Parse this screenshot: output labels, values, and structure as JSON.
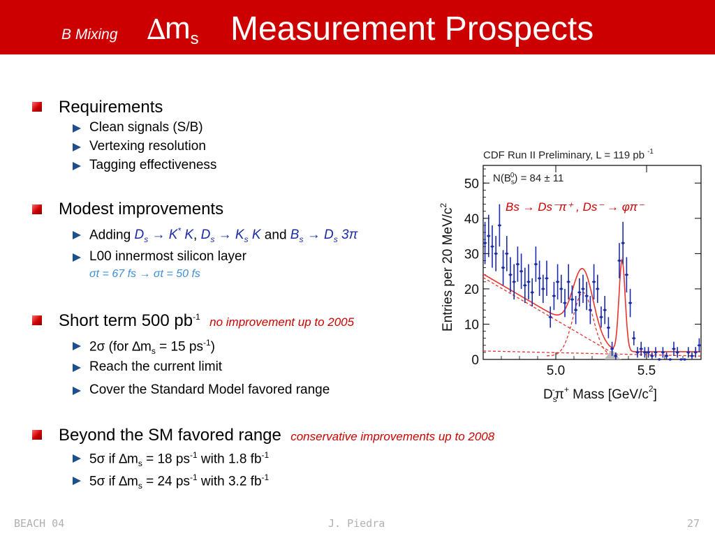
{
  "title": {
    "prefix": "B Mixing",
    "delta": "∆",
    "m": "m",
    "sub": "s",
    "main": "Measurement Prospects"
  },
  "requirements": {
    "heading": "Requirements",
    "items": [
      "Clean signals (S/B)",
      "Vertexing resolution",
      "Tagging effectiveness"
    ]
  },
  "modest": {
    "heading": "Modest improvements",
    "adding": {
      "pre": "Adding ",
      "ds1": "D",
      "s1": "s",
      "arrow1": " → K",
      "star": "*",
      "k1": " K",
      "sep": ",  ",
      "ds2": "D",
      "s2": "s",
      "arrow2": " → K",
      "s3": "s",
      "k2": " K",
      "and": " and ",
      "bs": "B",
      "s4": "s",
      "arrow3": " → D",
      "s5": "s",
      "tail": " 3π"
    },
    "l00": "L00 innermost silicon layer",
    "sigma": "σt = 67 fs → σt = 50 fs"
  },
  "shortterm": {
    "heading": "Short term 500 pb",
    "heading_sup": "-1",
    "note": "no improvement up to 2005",
    "items": [
      {
        "a": "2σ (for ∆m",
        "b": "s",
        "c": " = 15 ps",
        "d": "-1",
        "e": ")"
      },
      {
        "a": "Reach the current limit"
      },
      {
        "a": "Cover the Standard Model favored range"
      }
    ]
  },
  "beyond": {
    "heading": "Beyond the SM favored range",
    "note": "conservative improvements up to 2008",
    "items": [
      {
        "a": "5σ if ∆m",
        "b": "s",
        "c": " = 18 ps",
        "d": "-1",
        "e": " with 1.8 fb",
        "f": "-1"
      },
      {
        "a": "5σ if ∆m",
        "b": "s",
        "c": " = 24 ps",
        "d": "-1",
        "e": " with 3.2 fb",
        "f": "-1"
      }
    ]
  },
  "footer": {
    "left": "BEACH 04",
    "center": "J. Piedra",
    "right": "27"
  },
  "colors": {
    "accent": "#cc0000",
    "bullet": "#1f4e8c",
    "data": "#1a2aa8",
    "fit": "#e8322c"
  },
  "chart_data": {
    "type": "scatter",
    "title": "CDF Run II Preliminary, L = 119 pb",
    "title_sup": "-1",
    "legend_text": "N(B",
    "legend_sub": "s",
    "legend_sup": "0",
    "legend_rest": ") = 84 ± 11",
    "decay_label": "Bs → Ds⁻π⁺ ,  Ds⁻ → φπ⁻",
    "xlabel_pre": "D",
    "xlabel_sub": "s",
    "xlabel_sup": "-",
    "xlabel_post": "π",
    "xlabel_sup2": "+",
    "xlabel_rest": " Mass [GeV/c",
    "xlabel_sup3": "2",
    "xlabel_end": "]",
    "ylabel": "Entries per 20 MeV/c",
    "ylabel_sup": "2",
    "xlim": [
      4.6,
      5.8
    ],
    "ylim": [
      0,
      55
    ],
    "xticks": [
      5.0,
      5.5
    ],
    "yticks": [
      0,
      10,
      20,
      30,
      40,
      50
    ],
    "series": [
      {
        "x": [
          4.61,
          4.63,
          4.65,
          4.67,
          4.69,
          4.71,
          4.73,
          4.75,
          4.77,
          4.79,
          4.81,
          4.83,
          4.85,
          4.87,
          4.89,
          4.91,
          4.93,
          4.95,
          4.97,
          4.99,
          5.01,
          5.03,
          5.05,
          5.07,
          5.09,
          5.11,
          5.13,
          5.15,
          5.17,
          5.19,
          5.21,
          5.23,
          5.25,
          5.27,
          5.29,
          5.31,
          5.33,
          5.35,
          5.37,
          5.39,
          5.41,
          5.43,
          5.45,
          5.47,
          5.49,
          5.51,
          5.53,
          5.55,
          5.57,
          5.59,
          5.61,
          5.63,
          5.65,
          5.67,
          5.69,
          5.71,
          5.73,
          5.75,
          5.77,
          5.79
        ],
        "y": [
          33,
          35,
          32,
          30,
          38,
          26,
          30,
          24,
          22,
          27,
          25,
          21,
          22,
          19,
          27,
          23,
          20,
          23,
          12,
          18,
          22,
          20,
          16,
          22,
          17,
          14,
          19,
          20,
          18,
          14,
          22,
          20,
          12,
          14,
          9,
          3,
          1,
          28,
          33,
          24,
          16,
          6,
          2,
          3,
          2,
          2,
          1,
          2,
          0,
          2,
          1,
          0,
          3,
          2,
          0,
          0,
          2,
          1,
          2,
          4
        ],
        "err": [
          6,
          6,
          6,
          5,
          6,
          5,
          5,
          5,
          5,
          5,
          5,
          5,
          5,
          4,
          5,
          5,
          4,
          5,
          3,
          4,
          5,
          4,
          4,
          5,
          4,
          4,
          4,
          4,
          4,
          4,
          5,
          4,
          3,
          4,
          3,
          2,
          1,
          5,
          6,
          5,
          4,
          2,
          1.5,
          2,
          1.5,
          1.5,
          1,
          1.5,
          0,
          1.5,
          1,
          0,
          2,
          1.5,
          0,
          0,
          1.5,
          1,
          1.5,
          2
        ]
      }
    ]
  }
}
